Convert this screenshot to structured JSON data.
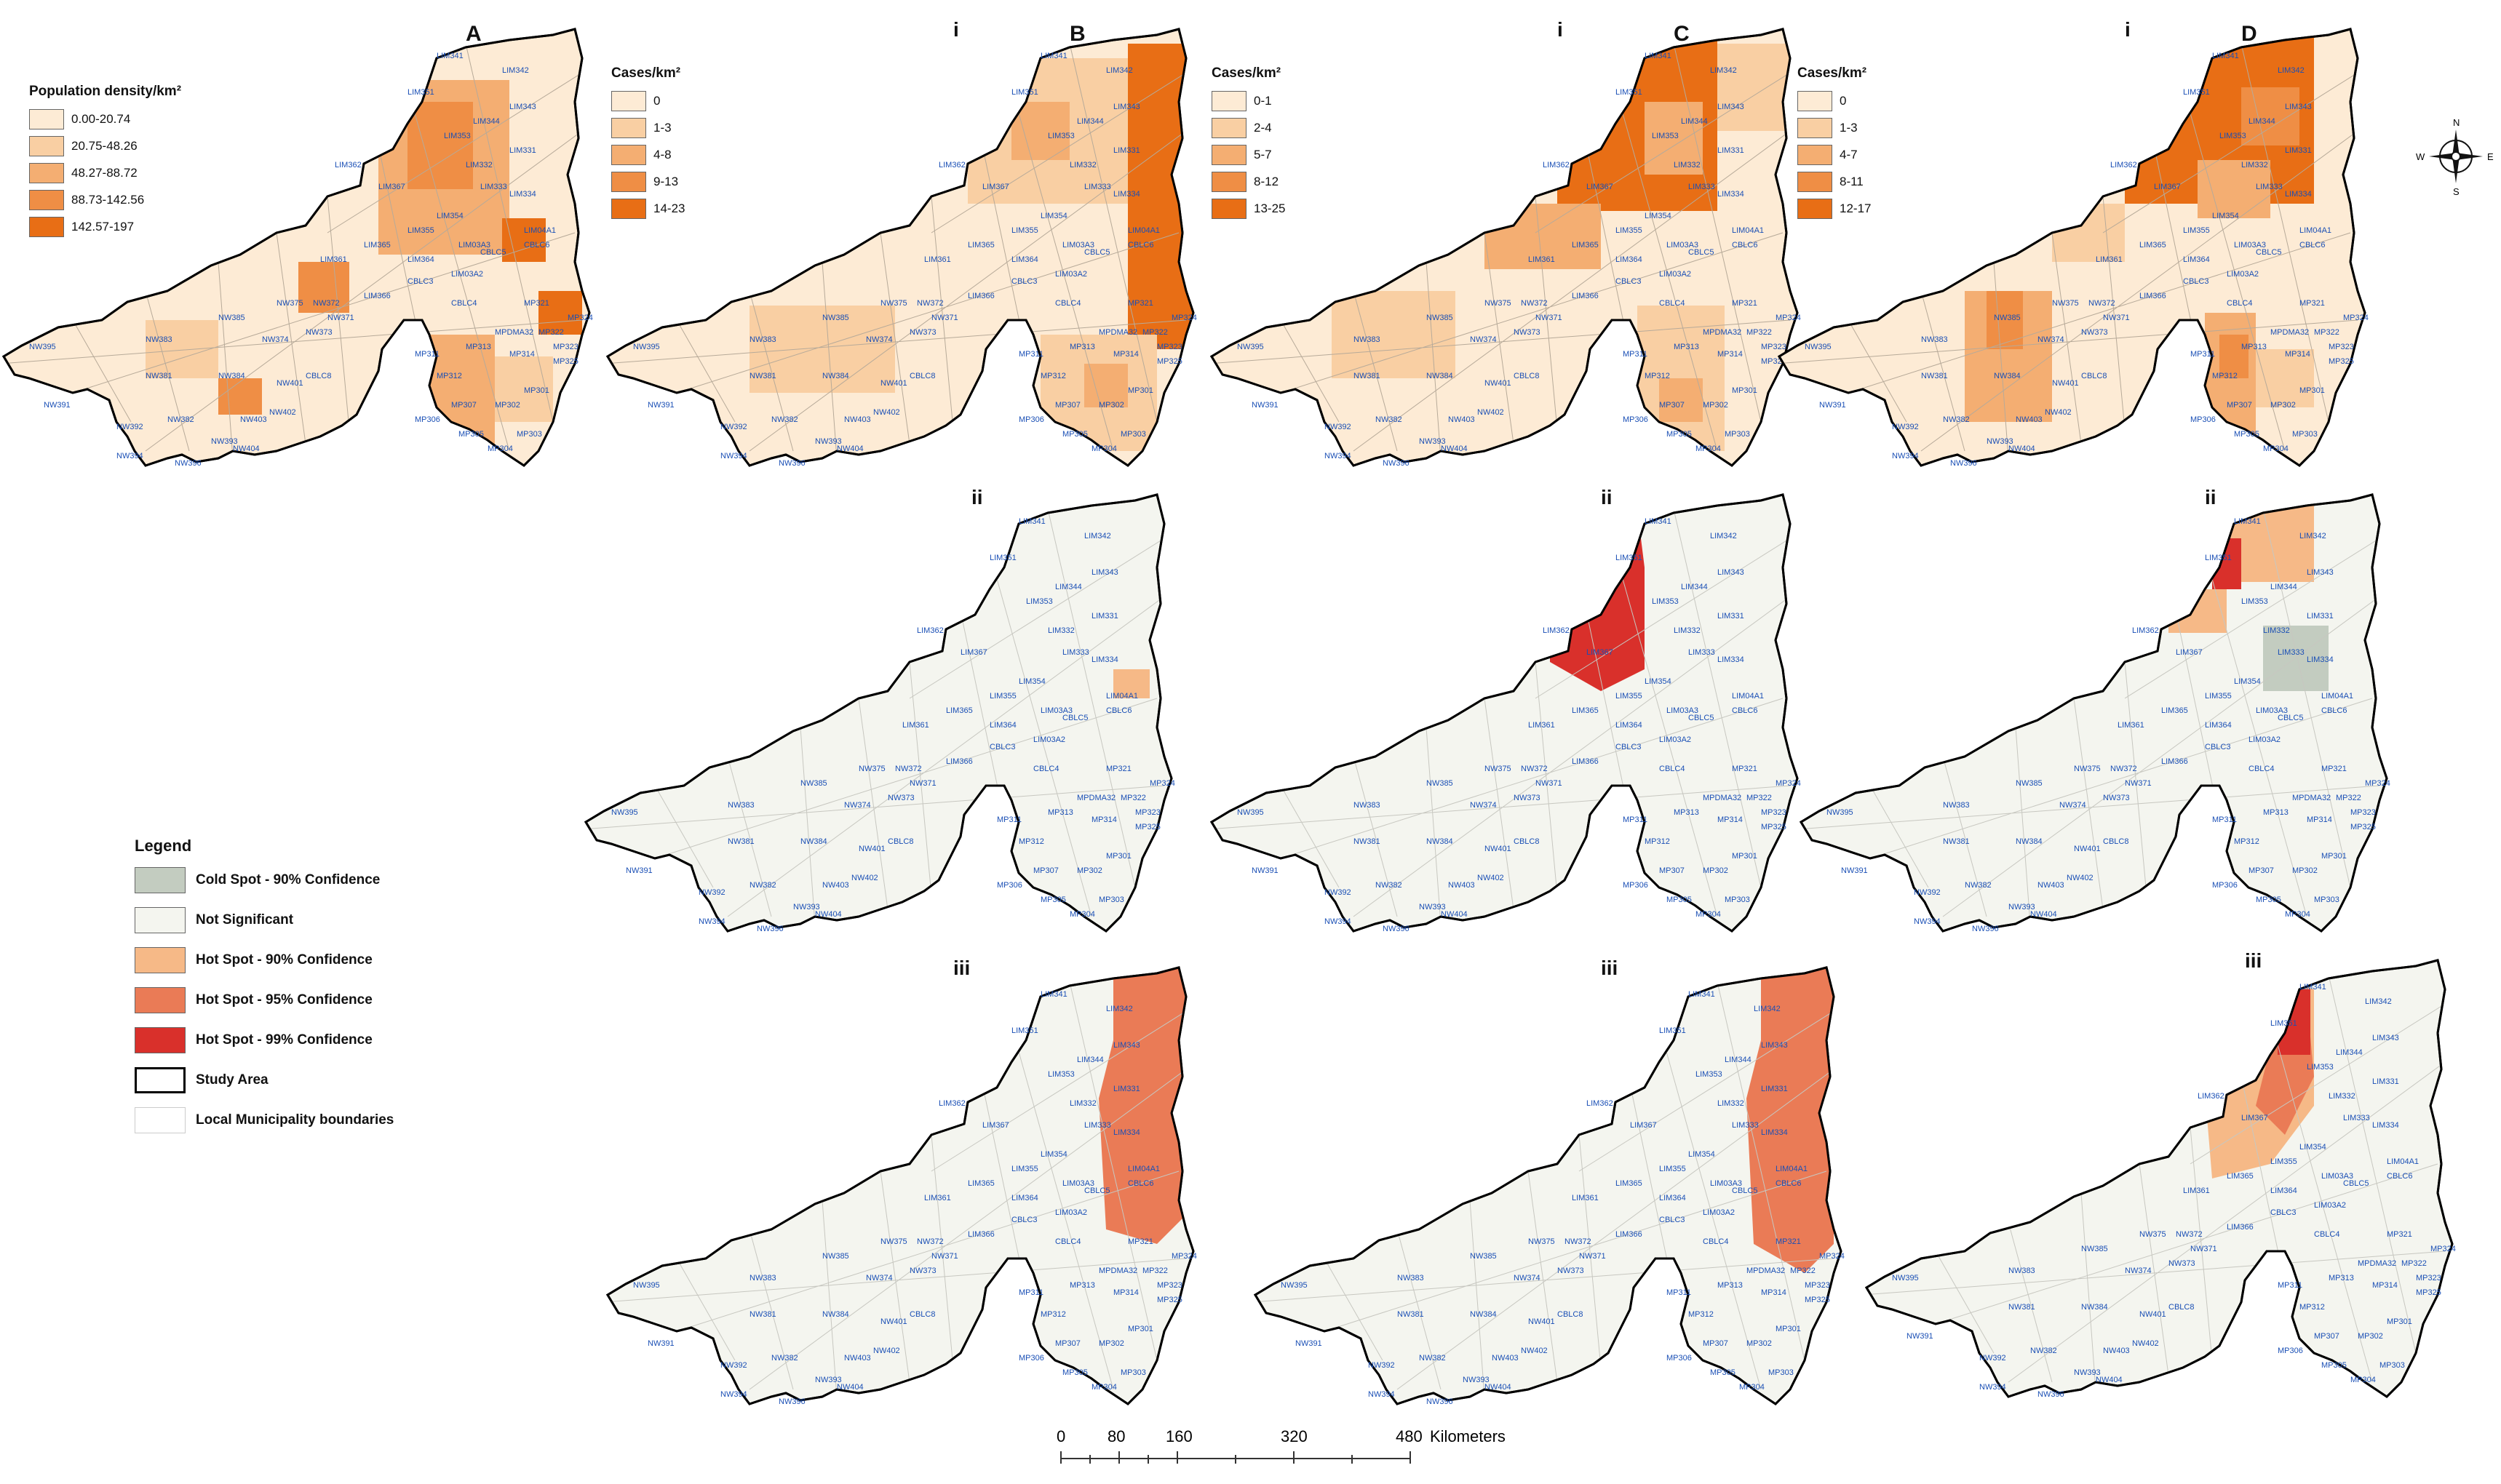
{
  "figure": {
    "legendA": {
      "title": "Population density/km²",
      "entries": [
        {
          "label": "0.00-20.74",
          "color": "#fdebd5"
        },
        {
          "label": "20.75-48.26",
          "color": "#f9cfa3"
        },
        {
          "label": "48.27-88.72",
          "color": "#f4ae72"
        },
        {
          "label": "88.73-142.56",
          "color": "#ef8e45"
        },
        {
          "label": "142.57-197",
          "color": "#e86e15"
        }
      ]
    },
    "legendB": {
      "title": "Cases/km²",
      "entries": [
        {
          "label": "0",
          "color": "#fdebd5"
        },
        {
          "label": "1-3",
          "color": "#f9cfa3"
        },
        {
          "label": "4-8",
          "color": "#f4ae72"
        },
        {
          "label": "9-13",
          "color": "#ef8e45"
        },
        {
          "label": "14-23",
          "color": "#e86e15"
        }
      ]
    },
    "legendC": {
      "title": "Cases/km²",
      "entries": [
        {
          "label": "0-1",
          "color": "#fdebd5"
        },
        {
          "label": "2-4",
          "color": "#f9cfa3"
        },
        {
          "label": "5-7",
          "color": "#f4ae72"
        },
        {
          "label": "8-12",
          "color": "#ef8e45"
        },
        {
          "label": "13-25",
          "color": "#e86e15"
        }
      ]
    },
    "legendD": {
      "title": "Cases/km²",
      "entries": [
        {
          "label": "0",
          "color": "#fdebd5"
        },
        {
          "label": "1-3",
          "color": "#f9cfa3"
        },
        {
          "label": "4-7",
          "color": "#f4ae72"
        },
        {
          "label": "8-11",
          "color": "#ef8e45"
        },
        {
          "label": "12-17",
          "color": "#e86e15"
        }
      ]
    },
    "panels": {
      "A": {
        "letter": "A"
      },
      "B": {
        "letter": "B",
        "roman": "i"
      },
      "C": {
        "letter": "C",
        "roman": "i"
      },
      "D": {
        "letter": "D",
        "roman": "i"
      },
      "Bii": {
        "roman": "ii"
      },
      "Cii": {
        "roman": "ii"
      },
      "Dii": {
        "roman": "ii"
      },
      "Biii": {
        "roman": "iii"
      },
      "Ciii": {
        "roman": "iii"
      },
      "Diii": {
        "roman": "iii"
      }
    },
    "main_legend": {
      "title": "Legend",
      "entries": [
        {
          "label": "Cold Spot - 90% Confidence",
          "color": "#c3ccc0"
        },
        {
          "label": "Not Significant",
          "color": "#f4f5ef"
        },
        {
          "label": "Hot Spot - 90% Confidence",
          "color": "#f6b987"
        },
        {
          "label": "Hot Spot - 95% Confidence",
          "color": "#ea7b56"
        },
        {
          "label": "Hot Spot - 99% Confidence",
          "color": "#d9302b"
        },
        {
          "label": "Study Area",
          "color": "#ffffff",
          "border": "#000000"
        },
        {
          "label": "Local Municipality boundaries",
          "color": "#ffffff",
          "border": "#cccccc"
        }
      ]
    },
    "scale_bar": {
      "ticks": [
        "0",
        "80",
        "160",
        "320",
        "480"
      ],
      "unit": "Kilometers"
    },
    "compass": {
      "n": "N",
      "s": "S",
      "e": "E",
      "w": "W"
    },
    "municipality_labels": [
      "LIM341",
      "LIM342",
      "LIM343",
      "LIM344",
      "LIM351",
      "LIM353",
      "LIM331",
      "LIM332",
      "LIM333",
      "LIM334",
      "LIM362",
      "LIM367",
      "LIM354",
      "LIM355",
      "LIM365",
      "LIM361",
      "LIM364",
      "LIM366",
      "CBLC3",
      "CBLC4",
      "CBLC5",
      "CBLC6",
      "MP313",
      "MP314",
      "MP301",
      "MP311",
      "MP312",
      "MP307",
      "MP302",
      "MP306",
      "MP305",
      "MP304",
      "MP303",
      "MP321",
      "MP322",
      "MP323",
      "MP324",
      "NW395",
      "NW383",
      "NW381",
      "NW384",
      "NW391",
      "NW392",
      "NW382",
      "NW393",
      "NW394",
      "NW396",
      "NW403",
      "NW404",
      "NW401",
      "NW402",
      "NW385",
      "NW374",
      "NW373",
      "NW375",
      "NW372",
      "NW371",
      "CBLC8",
      "MPDMA32",
      "MP325",
      "LIM04A1",
      "LIM03A3",
      "LIM03A2"
    ]
  }
}
